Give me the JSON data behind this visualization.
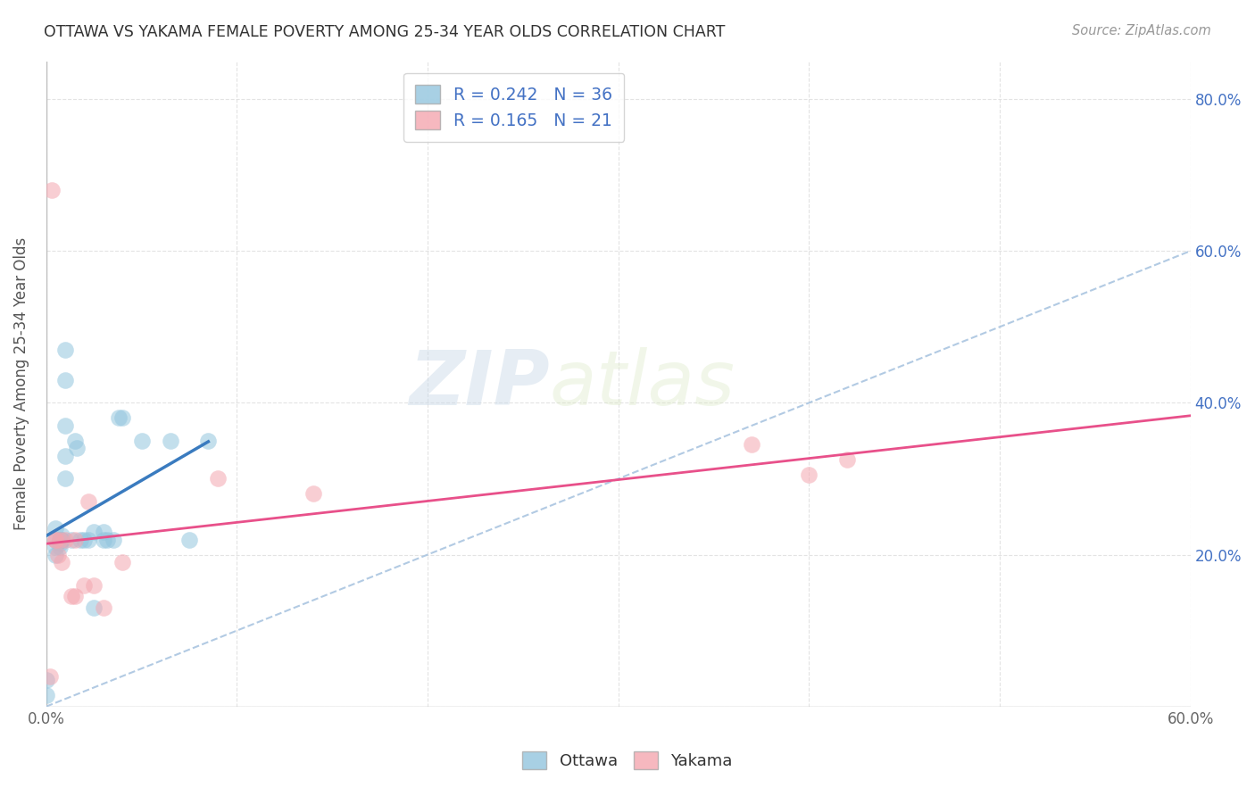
{
  "title": "OTTAWA VS YAKAMA FEMALE POVERTY AMONG 25-34 YEAR OLDS CORRELATION CHART",
  "source": "Source: ZipAtlas.com",
  "ylabel": "Female Poverty Among 25-34 Year Olds",
  "xmin": 0.0,
  "xmax": 0.6,
  "ymin": 0.0,
  "ymax": 0.85,
  "x_ticks": [
    0.0,
    0.1,
    0.2,
    0.3,
    0.4,
    0.5,
    0.6
  ],
  "x_tick_labels": [
    "0.0%",
    "",
    "",
    "",
    "",
    "",
    "60.0%"
  ],
  "y_ticks_right": [
    0.0,
    0.2,
    0.4,
    0.6,
    0.8
  ],
  "y_tick_labels_right": [
    "",
    "20.0%",
    "40.0%",
    "60.0%",
    "80.0%"
  ],
  "ottawa_R": 0.242,
  "ottawa_N": 36,
  "yakama_R": 0.165,
  "yakama_N": 21,
  "ottawa_color": "#92c5de",
  "yakama_color": "#f4a6b0",
  "ottawa_line_color": "#3a7bbf",
  "yakama_line_color": "#e8508a",
  "diagonal_color": "#aac5e0",
  "watermark_zip": "ZIP",
  "watermark_atlas": "atlas",
  "ottawa_x": [
    0.0,
    0.0,
    0.005,
    0.005,
    0.005,
    0.005,
    0.007,
    0.007,
    0.007,
    0.007,
    0.008,
    0.008,
    0.008,
    0.01,
    0.01,
    0.01,
    0.01,
    0.01,
    0.013,
    0.015,
    0.016,
    0.018,
    0.02,
    0.022,
    0.025,
    0.025,
    0.03,
    0.03,
    0.032,
    0.035,
    0.038,
    0.04,
    0.05,
    0.065,
    0.075,
    0.085
  ],
  "ottawa_y": [
    0.035,
    0.015,
    0.235,
    0.22,
    0.21,
    0.2,
    0.22,
    0.215,
    0.22,
    0.21,
    0.22,
    0.225,
    0.22,
    0.33,
    0.3,
    0.37,
    0.43,
    0.47,
    0.22,
    0.35,
    0.34,
    0.22,
    0.22,
    0.22,
    0.23,
    0.13,
    0.22,
    0.23,
    0.22,
    0.22,
    0.38,
    0.38,
    0.35,
    0.35,
    0.22,
    0.35
  ],
  "yakama_x": [
    0.002,
    0.003,
    0.005,
    0.005,
    0.006,
    0.007,
    0.008,
    0.01,
    0.013,
    0.015,
    0.015,
    0.02,
    0.022,
    0.025,
    0.03,
    0.04,
    0.09,
    0.14,
    0.37,
    0.4,
    0.42
  ],
  "yakama_y": [
    0.04,
    0.68,
    0.22,
    0.22,
    0.2,
    0.22,
    0.19,
    0.22,
    0.145,
    0.145,
    0.22,
    0.16,
    0.27,
    0.16,
    0.13,
    0.19,
    0.3,
    0.28,
    0.345,
    0.305,
    0.325
  ]
}
